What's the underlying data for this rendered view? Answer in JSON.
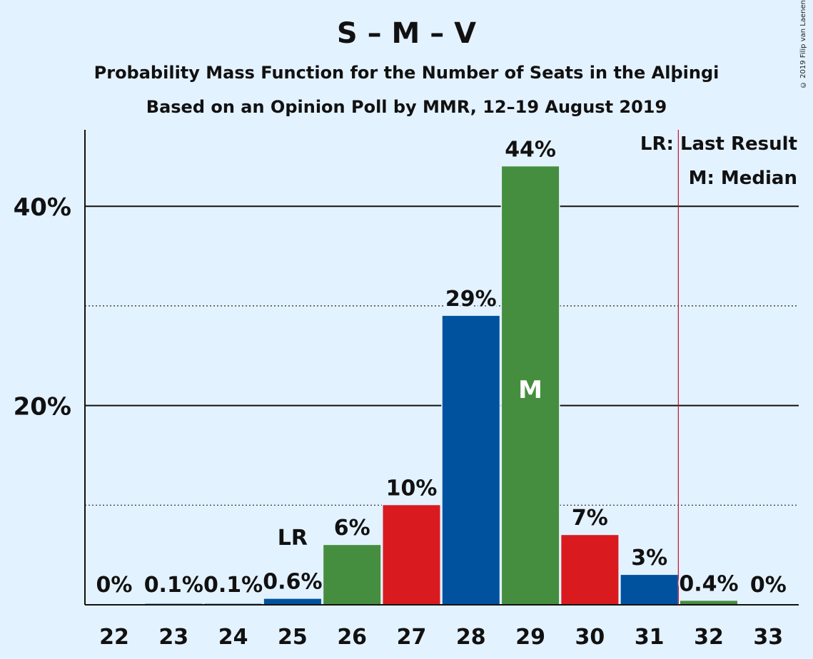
{
  "copyright": "© 2019 Filip van Laenen",
  "chart_data": {
    "type": "bar",
    "title": "S – M – V",
    "subtitle": "Probability Mass Function for the Number of Seats in the Alþingi",
    "subtitle2": "Based on an Opinion Poll by MMR, 12–19 August 2019",
    "categories": [
      "22",
      "23",
      "24",
      "25",
      "26",
      "27",
      "28",
      "29",
      "30",
      "31",
      "32",
      "33"
    ],
    "values": [
      0,
      0.1,
      0.1,
      0.6,
      6,
      10,
      29,
      44,
      7,
      3,
      0.4,
      0
    ],
    "value_labels": [
      "0%",
      "0.1%",
      "0.1%",
      "0.6%",
      "6%",
      "10%",
      "29%",
      "44%",
      "7%",
      "3%",
      "0.4%",
      "0%"
    ],
    "bar_colors": [
      "#00529f",
      "#00529f",
      "#00529f",
      "#00529f",
      "#458e3f",
      "#d91a1f",
      "#00529f",
      "#458e3f",
      "#d91a1f",
      "#00529f",
      "#458e3f",
      "#458e3f"
    ],
    "ylim": [
      0,
      48
    ],
    "y_ticks": [
      {
        "value": 20,
        "label": "20%"
      },
      {
        "value": 40,
        "label": "40%"
      }
    ],
    "minor_gridlines": [
      10,
      30
    ],
    "last_result": {
      "seats": "25",
      "label": "LR"
    },
    "median": {
      "seats": "29",
      "label": "M"
    },
    "majority_line_after": "31",
    "legend": [
      "LR: Last Result",
      "M: Median"
    ],
    "legend_position": "top-right"
  }
}
